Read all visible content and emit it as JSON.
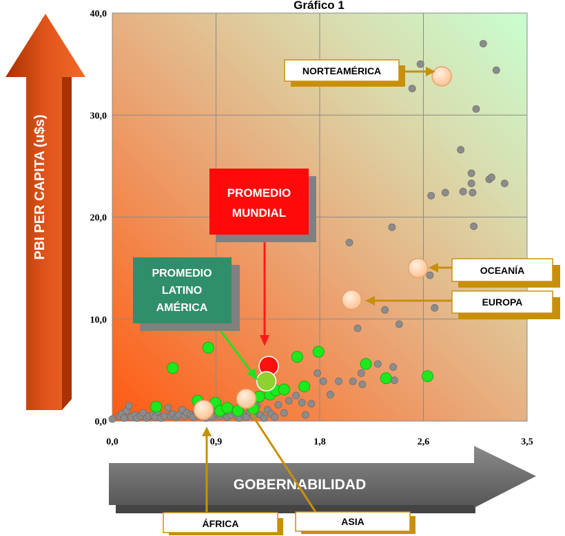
{
  "chart_data": {
    "type": "scatter",
    "title": "Gráfico 1",
    "xlabel": "GOBERNABILIDAD",
    "ylabel": "PBI PER CAPITA (u$s)",
    "xlim": [
      0,
      3.5
    ],
    "ylim": [
      0,
      40
    ],
    "x_ticks": [
      "0,0",
      "0,9",
      "1,8",
      "2,6",
      "3,5"
    ],
    "x_tick_values": [
      0,
      0.875,
      1.75,
      2.625,
      3.5
    ],
    "y_ticks": [
      "0,0",
      "10,0",
      "20,0",
      "30,0",
      "40,0"
    ],
    "y_tick_values": [
      0,
      10,
      20,
      30,
      40
    ],
    "grid": true,
    "background": "orange-to-green gradient",
    "series": [
      {
        "color": "#8c8c8c",
        "points": [
          [
            0.0,
            0.2
          ],
          [
            0.06,
            0.5
          ],
          [
            0.08,
            0.7
          ],
          [
            0.1,
            0.3
          ],
          [
            0.12,
            1.0
          ],
          [
            0.14,
            1.5
          ],
          [
            0.16,
            0.4
          ],
          [
            0.19,
            0.6
          ],
          [
            0.21,
            0.3
          ],
          [
            0.24,
            0.5
          ],
          [
            0.26,
            0.8
          ],
          [
            0.29,
            0.3
          ],
          [
            0.31,
            0.5
          ],
          [
            0.34,
            0.6
          ],
          [
            0.36,
            0.4
          ],
          [
            0.38,
            0.9
          ],
          [
            0.41,
            0.3
          ],
          [
            0.44,
            0.5
          ],
          [
            0.47,
            1.3
          ],
          [
            0.49,
            0.5
          ],
          [
            0.51,
            0.7
          ],
          [
            0.54,
            0.4
          ],
          [
            0.56,
            0.6
          ],
          [
            0.59,
            1.1
          ],
          [
            0.61,
            0.5
          ],
          [
            0.63,
            0.8
          ],
          [
            0.66,
            0.6
          ],
          [
            0.68,
            0.4
          ],
          [
            0.71,
            0.9
          ],
          [
            0.73,
            0.5
          ],
          [
            0.76,
            0.6
          ],
          [
            0.79,
            0.3
          ],
          [
            0.81,
            0.7
          ],
          [
            0.84,
            0.4
          ],
          [
            0.86,
            1.2
          ],
          [
            0.89,
            0.6
          ],
          [
            0.91,
            0.5
          ],
          [
            0.94,
            0.8
          ],
          [
            0.97,
            0.4
          ],
          [
            1.0,
            0.6
          ],
          [
            1.02,
            1.0
          ],
          [
            1.05,
            0.5
          ],
          [
            1.07,
            0.3
          ],
          [
            1.1,
            0.7
          ],
          [
            1.13,
            0.4
          ],
          [
            1.16,
            0.9
          ],
          [
            1.19,
            0.5
          ],
          [
            1.22,
            1.5
          ],
          [
            1.25,
            0.6
          ],
          [
            1.28,
            0.3
          ],
          [
            1.31,
            1.1
          ],
          [
            1.34,
            0.7
          ],
          [
            1.37,
            0.4
          ],
          [
            1.4,
            1.6
          ],
          [
            1.45,
            0.8
          ],
          [
            1.49,
            2.0
          ],
          [
            1.55,
            2.5
          ],
          [
            1.6,
            1.8
          ],
          [
            1.63,
            0.6
          ],
          [
            1.68,
            1.7
          ],
          [
            1.73,
            4.7
          ],
          [
            1.78,
            3.9
          ],
          [
            1.84,
            2.6
          ],
          [
            1.91,
            3.9
          ],
          [
            2.03,
            3.9
          ],
          [
            2.07,
            9.1
          ],
          [
            2.1,
            4.7
          ],
          [
            2.11,
            3.6
          ],
          [
            2.24,
            5.6
          ],
          [
            2.3,
            10.9
          ],
          [
            2.37,
            5.3
          ],
          [
            2.38,
            4.0
          ],
          [
            2.42,
            9.5
          ],
          [
            2.0,
            17.5
          ],
          [
            2.36,
            19.0
          ],
          [
            2.53,
            32.6
          ],
          [
            2.6,
            35.0
          ],
          [
            2.68,
            14.3
          ],
          [
            2.69,
            22.1
          ],
          [
            2.72,
            11.1
          ],
          [
            2.81,
            22.4
          ],
          [
            2.94,
            26.6
          ],
          [
            2.96,
            22.5
          ],
          [
            3.03,
            23.3
          ],
          [
            3.03,
            24.3
          ],
          [
            3.04,
            22.4
          ],
          [
            3.05,
            19.1
          ],
          [
            3.07,
            30.6
          ],
          [
            3.13,
            37.0
          ],
          [
            3.18,
            23.7
          ],
          [
            3.2,
            23.9
          ],
          [
            3.24,
            34.4
          ],
          [
            3.31,
            23.3
          ]
        ]
      },
      {
        "color": "#1ee81e",
        "points": [
          [
            0.51,
            5.2
          ],
          [
            0.37,
            1.4
          ],
          [
            0.72,
            2.0
          ],
          [
            0.81,
            7.2
          ],
          [
            0.87,
            1.8
          ],
          [
            0.91,
            1.0
          ],
          [
            0.97,
            1.3
          ],
          [
            1.06,
            1.0
          ],
          [
            1.19,
            1.2
          ],
          [
            1.24,
            2.4
          ],
          [
            1.29,
            3.9
          ],
          [
            1.33,
            2.6
          ],
          [
            1.38,
            3.0
          ],
          [
            1.45,
            3.1
          ],
          [
            1.56,
            6.3
          ],
          [
            1.62,
            3.4
          ],
          [
            1.74,
            6.8
          ],
          [
            2.14,
            5.6
          ],
          [
            2.31,
            4.2
          ],
          [
            2.66,
            4.4
          ]
        ]
      }
    ],
    "highlights": [
      {
        "name": "NORTEAMÉRICA",
        "x": 2.78,
        "y": 33.8,
        "color": "#ffcc99"
      },
      {
        "name": "OCEANÍA",
        "x": 2.58,
        "y": 15.0,
        "color": "#ffcc99"
      },
      {
        "name": "EUROPA",
        "x": 2.02,
        "y": 11.9,
        "color": "#ffcc99"
      },
      {
        "name": "ÁFRICA",
        "x": 0.77,
        "y": 1.1,
        "color": "#ffcc99"
      },
      {
        "name": "ASIA",
        "x": 1.13,
        "y": 2.2,
        "color": "#ffcc99"
      },
      {
        "name": "PROMEDIO MUNDIAL",
        "x": 1.32,
        "y": 5.4,
        "color": "#ff1010"
      },
      {
        "name": "PROMEDIO LATINO AMÉRICA",
        "x": 1.3,
        "y": 3.9,
        "color": "#8fd230"
      }
    ],
    "annotations": {
      "promedio_mundial": [
        "PROMEDIO",
        "MUNDIAL"
      ],
      "promedio_latino": [
        "PROMEDIO",
        "LATINO",
        "AMÉRICA"
      ],
      "norteamerica": "NORTEAMÉRICA",
      "oceania": "OCEANÍA",
      "europa": "EUROPA",
      "africa": "ÁFRICA",
      "asia": "ASIA"
    }
  }
}
